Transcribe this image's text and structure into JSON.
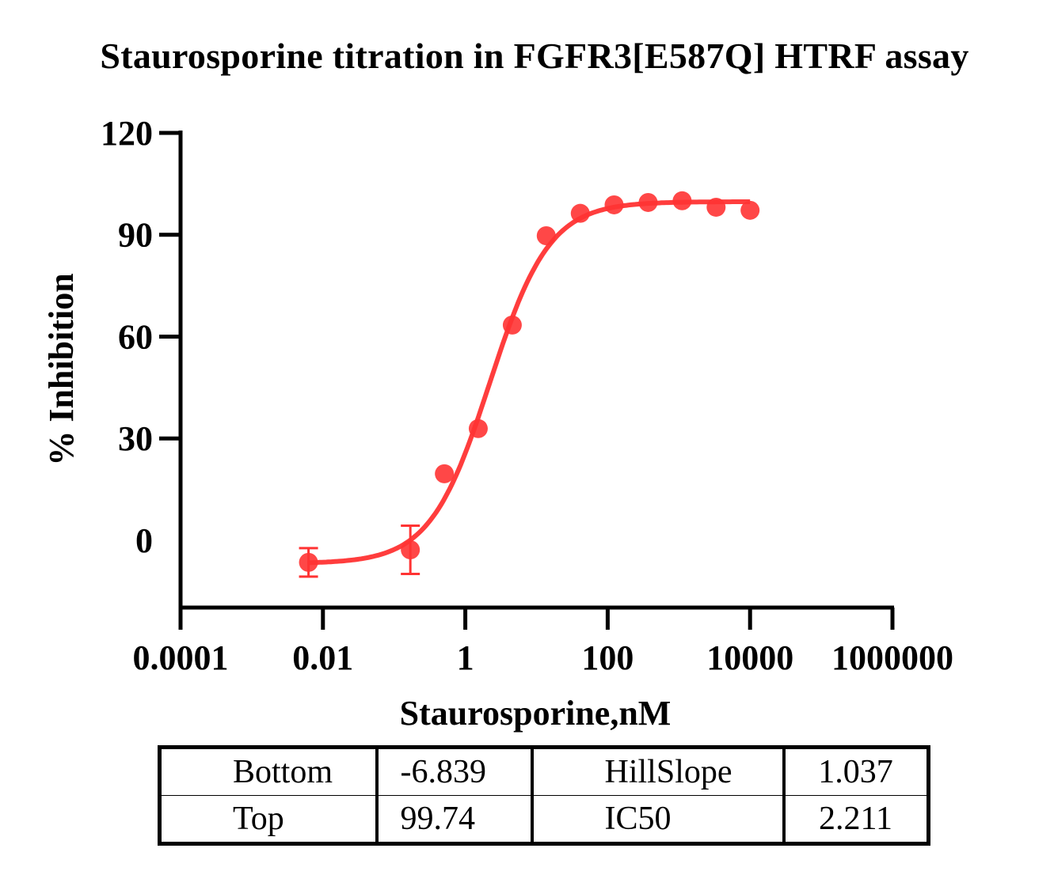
{
  "chart_data": {
    "type": "scatter",
    "title": "Staurosporine titration in FGFR3[E587Q] HTRF assay",
    "xlabel": "Staurosporine,nM",
    "ylabel": "% Inhibition",
    "xscale": "log",
    "xlim": [
      0.0001,
      1000000
    ],
    "ylim": [
      -20,
      120
    ],
    "x_ticks": [
      "0.0001",
      "0.01",
      "1",
      "100",
      "10000",
      "1000000"
    ],
    "y_ticks": [
      "0",
      "30",
      "60",
      "90",
      "120"
    ],
    "grid": false,
    "color": "#ff3333",
    "series": [
      {
        "name": "Staurosporine",
        "x": [
          0.00627,
          0.169,
          0.508,
          1.52,
          4.57,
          13.7,
          41.2,
          123,
          370,
          1111,
          3333,
          10000
        ],
        "y": [
          -6.5,
          -2.8,
          19.6,
          32.9,
          63.4,
          89.7,
          96.3,
          98.8,
          99.5,
          100.0,
          98.1,
          97.2
        ],
        "error": [
          4.2,
          7.1,
          0,
          0,
          0,
          0,
          0,
          0,
          0,
          0,
          0,
          0
        ]
      }
    ],
    "fit": {
      "model": "4PL",
      "bottom": -6.839,
      "top": 99.74,
      "hillslope": 1.037,
      "ic50": 2.211,
      "x_range": [
        0.00627,
        10000
      ]
    },
    "table": {
      "rows": [
        [
          "Bottom",
          "-6.839",
          "HillSlope",
          "1.037"
        ],
        [
          "Top",
          "99.74",
          "IC50",
          "2.211"
        ]
      ]
    }
  }
}
